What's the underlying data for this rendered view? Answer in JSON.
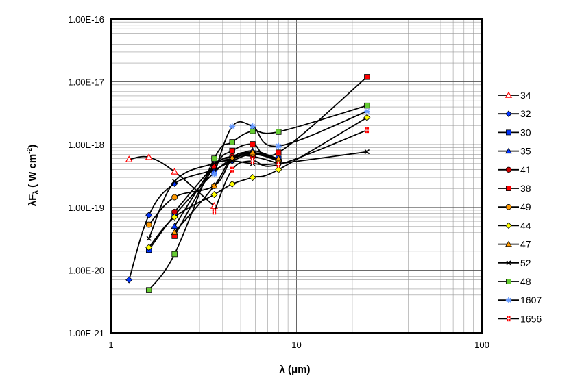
{
  "chart_data": {
    "type": "line",
    "xscale": "log",
    "yscale": "log",
    "xlim": [
      1,
      100
    ],
    "ylim": [
      1e-21,
      1e-16
    ],
    "grid": true,
    "legend_position": "right",
    "xlabel": "λ (μm)",
    "ylabel": "λFλ (W cm-2)",
    "x_ticks": [
      "1",
      "10",
      "100"
    ],
    "y_ticks": [
      "1.00E-21",
      "1.00E-20",
      "1.00E-19",
      "1.00E-18",
      "1.00E-17",
      "1.00E-16"
    ],
    "series": [
      {
        "name": "34",
        "color": "#ff0000",
        "marker": "triangle-open",
        "points": [
          [
            1.25,
            5.8e-19
          ],
          [
            1.6,
            6.3e-19
          ],
          [
            2.2,
            3.7e-19
          ],
          [
            3.6,
            1.05e-19
          ]
        ]
      },
      {
        "name": "32",
        "color": "#0033ff",
        "marker": "diamond",
        "points": [
          [
            1.25,
            7e-21
          ],
          [
            1.6,
            7.5e-20
          ],
          [
            2.2,
            2.4e-19
          ],
          [
            3.6,
            4e-19
          ],
          [
            4.5,
            5.5e-19
          ],
          [
            5.8,
            7e-19
          ],
          [
            8.0,
            5.8e-19
          ]
        ]
      },
      {
        "name": "30",
        "color": "#0033ff",
        "marker": "square",
        "points": [
          [
            1.6,
            2.1e-20
          ],
          [
            2.2,
            7.5e-20
          ],
          [
            3.6,
            3.6e-19
          ],
          [
            4.5,
            5.8e-19
          ],
          [
            5.8,
            7.2e-19
          ],
          [
            8.0,
            6e-19
          ]
        ]
      },
      {
        "name": "35",
        "color": "#0033ff",
        "marker": "triangle",
        "points": [
          [
            2.2,
            5e-20
          ],
          [
            3.6,
            4.6e-19
          ],
          [
            4.5,
            6e-19
          ],
          [
            5.8,
            8e-19
          ],
          [
            8.0,
            5.8e-19
          ]
        ]
      },
      {
        "name": "41",
        "color": "#cc0000",
        "marker": "circle",
        "points": [
          [
            2.2,
            8.5e-20
          ],
          [
            3.6,
            4.6e-19
          ],
          [
            4.5,
            6.5e-19
          ],
          [
            5.8,
            6.5e-19
          ],
          [
            8.0,
            5e-19
          ]
        ]
      },
      {
        "name": "38",
        "color": "#ff0000",
        "marker": "square",
        "points": [
          [
            2.2,
            3.5e-20
          ],
          [
            3.6,
            4.5e-19
          ],
          [
            4.5,
            8e-19
          ],
          [
            5.8,
            1.02e-18
          ],
          [
            8.0,
            7.5e-19
          ],
          [
            24.0,
            1.2e-17
          ]
        ]
      },
      {
        "name": "49",
        "color": "#ff9900",
        "marker": "circle",
        "points": [
          [
            1.6,
            5.3e-20
          ],
          [
            2.2,
            1.45e-19
          ],
          [
            3.6,
            2.2e-19
          ],
          [
            4.5,
            5.8e-19
          ],
          [
            5.8,
            7.2e-19
          ],
          [
            8.0,
            5.5e-19
          ]
        ]
      },
      {
        "name": "44",
        "color": "#ffff00",
        "marker": "diamond",
        "points": [
          [
            1.6,
            2.3e-20
          ],
          [
            2.2,
            7e-20
          ],
          [
            3.6,
            1.6e-19
          ],
          [
            4.5,
            2.35e-19
          ],
          [
            5.8,
            3e-19
          ],
          [
            8.0,
            4e-19
          ],
          [
            24.0,
            2.7e-18
          ]
        ]
      },
      {
        "name": "47",
        "color": "#ff9900",
        "marker": "triangle",
        "points": [
          [
            2.2,
            4e-20
          ],
          [
            3.6,
            2.2e-19
          ],
          [
            4.5,
            6.2e-19
          ],
          [
            5.8,
            7.5e-19
          ],
          [
            8.0,
            6e-19
          ]
        ]
      },
      {
        "name": "52",
        "color": "#000000",
        "marker": "x",
        "points": [
          [
            1.6,
            3.2e-20
          ],
          [
            2.2,
            2.6e-19
          ],
          [
            3.6,
            5e-19
          ],
          [
            4.5,
            5.5e-19
          ],
          [
            5.8,
            5e-19
          ],
          [
            8.0,
            5e-19
          ],
          [
            24.0,
            7.7e-19
          ]
        ]
      },
      {
        "name": "48",
        "color": "#66cc33",
        "marker": "square",
        "points": [
          [
            1.6,
            4.8e-21
          ],
          [
            2.2,
            1.8e-20
          ],
          [
            3.6,
            6e-19
          ],
          [
            4.5,
            1.1e-18
          ],
          [
            5.8,
            1.65e-18
          ],
          [
            8.0,
            1.6e-18
          ],
          [
            24.0,
            4.2e-18
          ]
        ]
      },
      {
        "name": "1607",
        "color": "#6699ff",
        "marker": "star",
        "points": [
          [
            3.6,
            3.4e-19
          ],
          [
            4.5,
            1.95e-18
          ],
          [
            5.8,
            1.95e-18
          ],
          [
            8.0,
            9.5e-19
          ],
          [
            24.0,
            3.4e-18
          ]
        ]
      },
      {
        "name": "1656",
        "color": "#ff0000",
        "marker": "cross",
        "points": [
          [
            3.6,
            8.5e-20
          ],
          [
            4.5,
            4e-19
          ],
          [
            5.8,
            5.5e-19
          ],
          [
            8.0,
            4.8e-19
          ],
          [
            24.0,
            1.7e-18
          ]
        ]
      }
    ]
  }
}
